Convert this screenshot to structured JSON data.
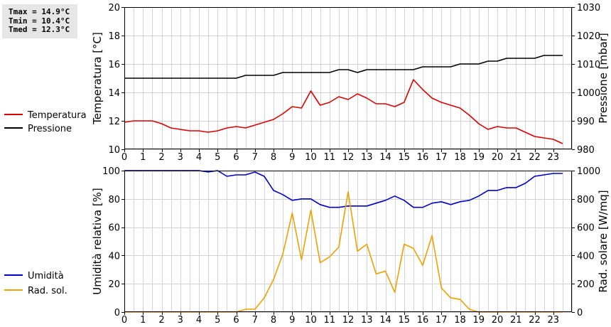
{
  "stats": {
    "tmax": "Tmax = 14.9°C",
    "tmin": "Tmin = 10.4°C",
    "tmed": "Tmed = 12.3°C"
  },
  "chart_data": [
    {
      "type": "line",
      "y_left_label": "Temperatura [°C]",
      "y_right_label": "Pressione [mbar]",
      "xlim": [
        0,
        24
      ],
      "ylim": [
        10,
        20
      ],
      "ylim_right": [
        980,
        1030
      ],
      "x_ticks": [
        0,
        1,
        2,
        3,
        4,
        5,
        6,
        7,
        8,
        9,
        10,
        11,
        12,
        13,
        14,
        15,
        16,
        17,
        18,
        19,
        20,
        21,
        22,
        23
      ],
      "y_left_ticks": [
        10,
        12,
        14,
        16,
        18,
        20
      ],
      "y_right_ticks": [
        980,
        990,
        1000,
        1010,
        1020,
        1030
      ],
      "grid": true,
      "legend_position": "left",
      "series": [
        {
          "name": "Temperatura",
          "axis": "left",
          "color": "#dd0000",
          "x": [
            0,
            0.5,
            1,
            1.5,
            2,
            2.5,
            3,
            3.5,
            4,
            4.5,
            5,
            5.5,
            6,
            6.5,
            7,
            7.5,
            8,
            8.5,
            9,
            9.5,
            10,
            10.5,
            11,
            11.5,
            12,
            12.5,
            13,
            13.5,
            14,
            14.5,
            15,
            15.5,
            16,
            16.5,
            17,
            17.5,
            18,
            18.5,
            19,
            19.5,
            20,
            20.5,
            21,
            21.5,
            22,
            22.5,
            23,
            23.5
          ],
          "y": [
            11.9,
            12.0,
            12.0,
            12.0,
            11.8,
            11.5,
            11.4,
            11.3,
            11.3,
            11.2,
            11.3,
            11.5,
            11.6,
            11.5,
            11.7,
            11.9,
            12.1,
            12.5,
            13.0,
            12.9,
            14.1,
            13.1,
            13.3,
            13.7,
            13.5,
            13.9,
            13.6,
            13.2,
            13.2,
            13.0,
            13.3,
            14.9,
            14.2,
            13.6,
            13.3,
            13.1,
            12.9,
            12.4,
            11.8,
            11.4,
            11.6,
            11.5,
            11.5,
            11.2,
            10.9,
            10.8,
            10.7,
            10.4
          ]
        },
        {
          "name": "Pressione",
          "axis": "right",
          "color": "#000000",
          "x": [
            0,
            6,
            6.5,
            8,
            8.5,
            11,
            11.5,
            12,
            12.5,
            13,
            13.5,
            15,
            15.5,
            16,
            16.5,
            17.5,
            18,
            19,
            19.5,
            20,
            20.5,
            22,
            22.5,
            23.5
          ],
          "y": [
            1005,
            1005,
            1006,
            1006,
            1007,
            1007,
            1008,
            1008,
            1007,
            1008,
            1008,
            1008,
            1008,
            1009,
            1009,
            1009,
            1010,
            1010,
            1011,
            1011,
            1012,
            1012,
            1013,
            1013
          ]
        }
      ]
    },
    {
      "type": "line",
      "y_left_label": "Umidità relativa [%]",
      "y_right_label": "Rad. solare [W/mq]",
      "xlim": [
        0,
        24
      ],
      "ylim": [
        0,
        100
      ],
      "ylim_right": [
        0,
        1000
      ],
      "x_ticks": [
        0,
        1,
        2,
        3,
        4,
        5,
        6,
        7,
        8,
        9,
        10,
        11,
        12,
        13,
        14,
        15,
        16,
        17,
        18,
        19,
        20,
        21,
        22,
        23
      ],
      "y_left_ticks": [
        0,
        20,
        40,
        60,
        80,
        100
      ],
      "y_right_ticks": [
        0,
        200,
        400,
        600,
        800,
        1000
      ],
      "grid": true,
      "legend_position": "left",
      "series": [
        {
          "name": "Umidità",
          "axis": "left",
          "color": "#0000cc",
          "x": [
            0,
            0.5,
            1,
            1.5,
            2,
            2.5,
            3,
            3.5,
            4,
            4.5,
            5,
            5.5,
            6,
            6.5,
            7,
            7.5,
            8,
            8.5,
            9,
            9.5,
            10,
            10.5,
            11,
            11.5,
            12,
            12.5,
            13,
            13.5,
            14,
            14.5,
            15,
            15.5,
            16,
            16.5,
            17,
            17.5,
            18,
            18.5,
            19,
            19.5,
            20,
            20.5,
            21,
            21.5,
            22,
            22.5,
            23,
            23.5
          ],
          "y": [
            100,
            100,
            100,
            100,
            100,
            100,
            100,
            100,
            100,
            99,
            100,
            96,
            97,
            97,
            99,
            96,
            86,
            83,
            79,
            80,
            80,
            76,
            74,
            74,
            75,
            75,
            75,
            77,
            79,
            82,
            79,
            74,
            74,
            77,
            78,
            76,
            78,
            79,
            82,
            86,
            86,
            88,
            88,
            91,
            96,
            97,
            98,
            98
          ]
        },
        {
          "name": "Rad. sol.",
          "axis": "right",
          "color": "#f0a000",
          "x": [
            0,
            0.5,
            1,
            1.5,
            2,
            2.5,
            3,
            3.5,
            4,
            4.5,
            5,
            5.5,
            6,
            6.5,
            7,
            7.5,
            8,
            8.5,
            9,
            9.5,
            10,
            10.5,
            11,
            11.5,
            12,
            12.5,
            13,
            13.5,
            14,
            14.5,
            15,
            15.5,
            16,
            16.5,
            17,
            17.5,
            18,
            18.5,
            19,
            19.5,
            20,
            20.5,
            21,
            21.5,
            22,
            22.5,
            23,
            23.5
          ],
          "y": [
            0,
            0,
            0,
            0,
            0,
            0,
            0,
            0,
            0,
            0,
            0,
            0,
            0,
            20,
            20,
            100,
            230,
            410,
            700,
            370,
            720,
            350,
            390,
            460,
            850,
            430,
            480,
            270,
            290,
            140,
            480,
            450,
            330,
            540,
            170,
            100,
            90,
            20,
            0,
            0,
            0,
            0,
            0,
            0,
            0,
            0,
            0,
            0
          ]
        }
      ]
    }
  ]
}
